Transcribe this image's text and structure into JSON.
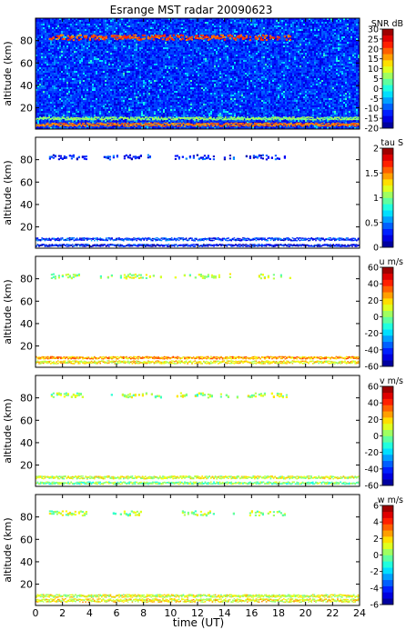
{
  "chart_data": {
    "type": "heatmap",
    "title": "Esrange MST radar 20090623",
    "xlabel": "time (UT)",
    "xlim": [
      0,
      24
    ],
    "x_ticks": [
      0,
      2,
      4,
      6,
      8,
      10,
      12,
      14,
      16,
      18,
      20,
      22,
      24
    ],
    "panels": [
      {
        "id": "snr",
        "ylabel": "altitude (km)",
        "ylim": [
          1,
          100
        ],
        "y_ticks": [
          20,
          40,
          60,
          80
        ],
        "colorbar_label": "SNR dB",
        "clim": [
          -20,
          30
        ],
        "colorbar_ticks": [
          -20,
          -15,
          -10,
          -5,
          0,
          5,
          10,
          15,
          20,
          25,
          30
        ],
        "background": "noise",
        "features": [
          {
            "kind": "pmse",
            "t_start": 1.0,
            "t_end": 19.0,
            "alt_center": 83.5,
            "alt_width": 4.5,
            "value": 20
          },
          {
            "kind": "low",
            "t_start": 0.0,
            "t_end": 24.0,
            "alt_center": 11.0,
            "alt_width": 2.5,
            "value": 6
          },
          {
            "kind": "low",
            "t_start": 0.0,
            "t_end": 24.0,
            "alt_center": 5.5,
            "alt_width": 3.0,
            "value": 18
          }
        ]
      },
      {
        "id": "tau",
        "ylabel": "altitude (km)",
        "ylim": [
          1,
          100
        ],
        "y_ticks": [
          20,
          40,
          60,
          80
        ],
        "colorbar_label": "tau S",
        "clim": [
          0,
          2
        ],
        "colorbar_ticks": [
          0,
          0.5,
          1,
          1.5,
          2
        ],
        "background": "white",
        "features": [
          {
            "kind": "pmse",
            "t_start": 1.0,
            "t_end": 19.0,
            "alt_center": 83.0,
            "alt_width": 4.0,
            "value": 0.3
          },
          {
            "kind": "low",
            "t_start": 0.0,
            "t_end": 24.0,
            "alt_center": 9.5,
            "alt_width": 2.5,
            "value": 0.35
          },
          {
            "kind": "low",
            "t_start": 0.0,
            "t_end": 24.0,
            "alt_center": 4.0,
            "alt_width": 2.0,
            "value": 0.25
          }
        ]
      },
      {
        "id": "u",
        "ylabel": "altitude (km)",
        "ylim": [
          1,
          100
        ],
        "y_ticks": [
          20,
          40,
          60,
          80
        ],
        "colorbar_label": "u m/s",
        "clim": [
          -60,
          60
        ],
        "colorbar_ticks": [
          -60,
          -40,
          -20,
          0,
          20,
          40,
          60
        ],
        "background": "white",
        "features": [
          {
            "kind": "pmse",
            "t_start": 1.0,
            "t_end": 19.0,
            "alt_center": 83.0,
            "alt_width": 4.0,
            "value": 5
          },
          {
            "kind": "low",
            "t_start": 0.0,
            "t_end": 24.0,
            "alt_center": 10.0,
            "alt_width": 2.0,
            "value": 25
          },
          {
            "kind": "low",
            "t_start": 0.0,
            "t_end": 24.0,
            "alt_center": 6.0,
            "alt_width": 2.5,
            "value": 15
          }
        ]
      },
      {
        "id": "v",
        "ylabel": "altitude (km)",
        "ylim": [
          1,
          100
        ],
        "y_ticks": [
          20,
          40,
          60,
          80
        ],
        "colorbar_label": "v m/s",
        "clim": [
          -60,
          60
        ],
        "colorbar_ticks": [
          -60,
          -40,
          -20,
          0,
          20,
          40,
          60
        ],
        "background": "white",
        "features": [
          {
            "kind": "pmse",
            "t_start": 1.0,
            "t_end": 19.0,
            "alt_center": 83.0,
            "alt_width": 4.0,
            "value": 5
          },
          {
            "kind": "low",
            "t_start": 0.0,
            "t_end": 24.0,
            "alt_center": 9.5,
            "alt_width": 2.5,
            "value": 10
          },
          {
            "kind": "low",
            "t_start": 0.0,
            "t_end": 24.0,
            "alt_center": 4.5,
            "alt_width": 2.0,
            "value": 0
          }
        ]
      },
      {
        "id": "w",
        "ylabel": "altitude (km)",
        "ylim": [
          1,
          100
        ],
        "y_ticks": [
          20,
          40,
          60,
          80
        ],
        "colorbar_label": "w m/s",
        "clim": [
          -6,
          6
        ],
        "colorbar_ticks": [
          -6,
          -4,
          -2,
          0,
          2,
          4,
          6
        ],
        "background": "white",
        "features": [
          {
            "kind": "pmse",
            "t_start": 1.0,
            "t_end": 19.0,
            "alt_center": 84.0,
            "alt_width": 4.0,
            "value": 0.5
          },
          {
            "kind": "low",
            "t_start": 0.0,
            "t_end": 24.0,
            "alt_center": 10.0,
            "alt_width": 2.5,
            "value": 1.0
          },
          {
            "kind": "low",
            "t_start": 0.0,
            "t_end": 24.0,
            "alt_center": 6.0,
            "alt_width": 3.0,
            "value": 1.5
          }
        ]
      }
    ]
  }
}
